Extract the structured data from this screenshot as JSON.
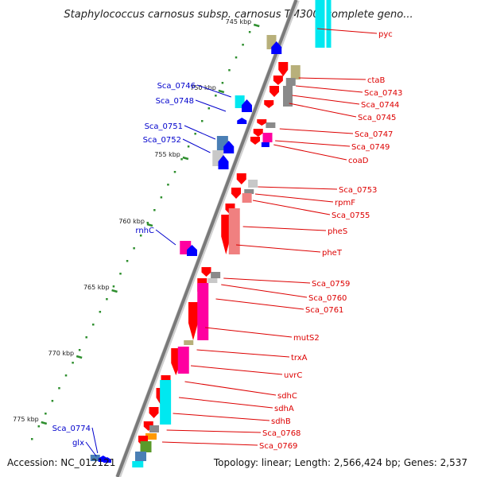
{
  "header": {
    "title": "Staphylococcus carnosus subsp. carnosus TM300, complete geno..."
  },
  "footer": {
    "accession": "Accession: NC_012121",
    "summary": "Topology: linear; Length: 2,566,424 bp; Genes: 2,537"
  },
  "colors": {
    "backbone": "#7a7a7a",
    "tick_mark": "#2f8f2f",
    "dot": "#2f8f2f",
    "right_label": "#dd0000",
    "left_label": "#0000cc",
    "gene_red": "#ff0000",
    "gene_blue": "#0000ff",
    "cyan": "#00e8f0",
    "khaki": "#b8b07a",
    "gray": "#8a8a8a",
    "lightgray": "#c8c8c8",
    "steelblue": "#4a7fb5",
    "salmon": "#f08080",
    "magenta": "#ff00a0",
    "green": "#5a9a2a",
    "orange": "#ff9900"
  },
  "kbp_labels": [
    "745 kbp",
    "750 kbp",
    "755 kbp",
    "760 kbp",
    "765 kbp",
    "770 kbp",
    "775 kbp"
  ],
  "right_genes": [
    "pyc",
    "ctaB",
    "Sca_0743",
    "Sca_0744",
    "Sca_0745",
    "Sca_0747",
    "Sca_0749",
    "coaD",
    "Sca_0753",
    "rpmF",
    "Sca_0755",
    "pheS",
    "pheT",
    "Sca_0759",
    "Sca_0760",
    "Sca_0761",
    "mutS2",
    "trxA",
    "uvrC",
    "sdhC",
    "sdhA",
    "sdhB",
    "Sca_0768",
    "Sca_0769"
  ],
  "left_genes": [
    "Sca_0746",
    "Sca_0748",
    "Sca_0751",
    "Sca_0752",
    "rnhC",
    "Sca_0774",
    "glx"
  ]
}
